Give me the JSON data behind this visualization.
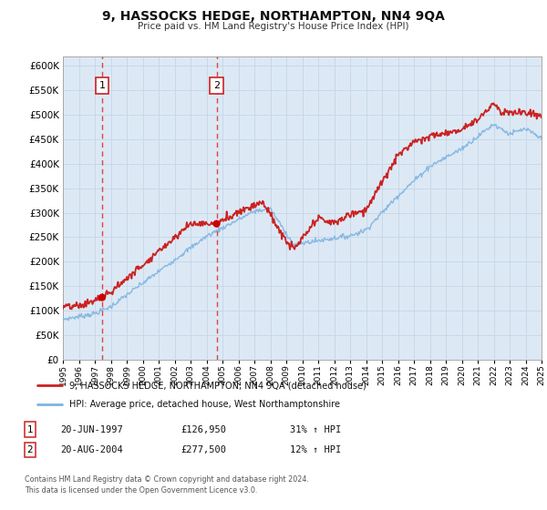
{
  "title": "9, HASSOCKS HEDGE, NORTHAMPTON, NN4 9QA",
  "subtitle": "Price paid vs. HM Land Registry's House Price Index (HPI)",
  "background_color": "#ffffff",
  "plot_bg_color": "#dce9f5",
  "grid_color": "#c8d8e8",
  "sale1_date_num": 1997.46,
  "sale1_price": 126950,
  "sale1_label": "1",
  "sale2_date_num": 2004.63,
  "sale2_price": 277500,
  "sale2_label": "2",
  "vline_color": "#dd4444",
  "dot_color": "#cc0000",
  "line1_color": "#cc2222",
  "line2_color": "#7fb3e0",
  "legend1_label": "9, HASSOCKS HEDGE, NORTHAMPTON, NN4 9QA (detached house)",
  "legend2_label": "HPI: Average price, detached house, West Northamptonshire",
  "table_row1": [
    "1",
    "20-JUN-1997",
    "£126,950",
    "31% ↑ HPI"
  ],
  "table_row2": [
    "2",
    "20-AUG-2004",
    "£277,500",
    "12% ↑ HPI"
  ],
  "footer": "Contains HM Land Registry data © Crown copyright and database right 2024.\nThis data is licensed under the Open Government Licence v3.0.",
  "box_border_color": "#cc2222",
  "box_fill_color": "#ffffff",
  "box_text_color": "#000000"
}
